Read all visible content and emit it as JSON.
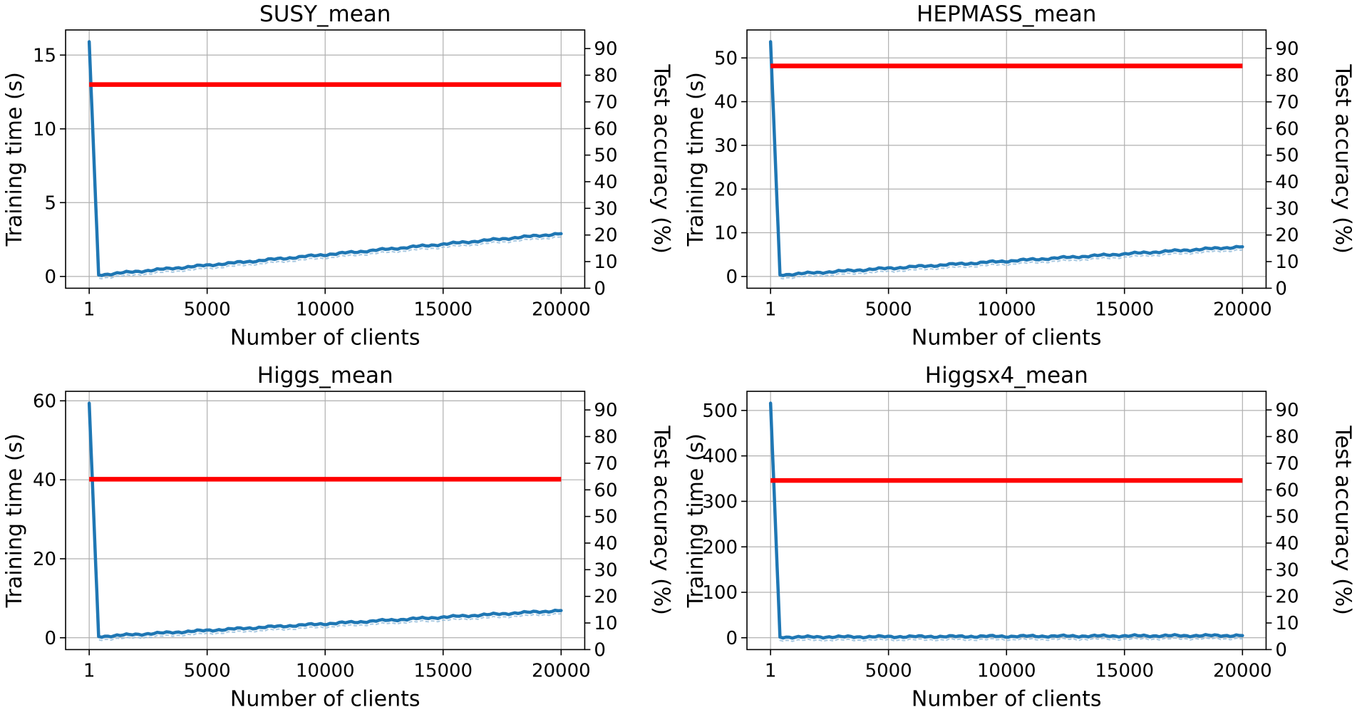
{
  "figure": {
    "background": "#ffffff",
    "layout": {
      "rows": 2,
      "cols": 2
    }
  },
  "colors": {
    "training_time": "#1f77b4",
    "training_time_echo": "#8db8d8",
    "accuracy": "#ff0000",
    "grid": "#b0b0b0",
    "spine": "#000000",
    "tick_label": "#000000",
    "title": "#000000"
  },
  "chart_data": [
    {
      "type": "line",
      "title": "SUSY_mean",
      "xlabel": "Number of clients",
      "x_axis": {
        "ticks": [
          1,
          5000,
          10000,
          15000,
          20000
        ],
        "xlim": [
          -999,
          21000
        ]
      },
      "left_axis": {
        "label": "Training time (s)",
        "color": "#1f77b4",
        "ticks": [
          0,
          5,
          10,
          15
        ],
        "ylim": [
          -0.8,
          16.7
        ]
      },
      "right_axis": {
        "label": "Test accuracy (%)",
        "color": "#ff0000",
        "ticks": [
          0,
          10,
          20,
          30,
          40,
          50,
          60,
          70,
          80,
          90
        ],
        "ylim": [
          0,
          97
        ]
      },
      "grid": true,
      "series": [
        {
          "name": "training_time_s",
          "axis": "left",
          "color": "#1f77b4",
          "points": [
            [
              1,
              15.9
            ],
            [
              400,
              0.1
            ],
            [
              20000,
              2.9
            ]
          ]
        },
        {
          "name": "test_accuracy_pct",
          "axis": "right",
          "color": "#ff0000",
          "points": [
            [
              1,
              76.5
            ],
            [
              20000,
              76.5
            ]
          ]
        }
      ]
    },
    {
      "type": "line",
      "title": "HEPMASS_mean",
      "xlabel": "Number of clients",
      "x_axis": {
        "ticks": [
          1,
          5000,
          10000,
          15000,
          20000
        ],
        "xlim": [
          -999,
          21000
        ]
      },
      "left_axis": {
        "label": "Training time (s)",
        "color": "#1f77b4",
        "ticks": [
          0,
          10,
          20,
          30,
          40,
          50
        ],
        "ylim": [
          -2.7,
          56.4
        ]
      },
      "right_axis": {
        "label": "Test accuracy (%)",
        "color": "#ff0000",
        "ticks": [
          0,
          10,
          20,
          30,
          40,
          50,
          60,
          70,
          80,
          90
        ],
        "ylim": [
          0,
          97
        ]
      },
      "grid": true,
      "series": [
        {
          "name": "training_time_s",
          "axis": "left",
          "color": "#1f77b4",
          "points": [
            [
              1,
              53.7
            ],
            [
              400,
              0.35
            ],
            [
              20000,
              6.8
            ]
          ]
        },
        {
          "name": "test_accuracy_pct",
          "axis": "right",
          "color": "#ff0000",
          "points": [
            [
              1,
              83.5
            ],
            [
              20000,
              83.5
            ]
          ]
        }
      ]
    },
    {
      "type": "line",
      "title": "Higgs_mean",
      "xlabel": "Number of clients",
      "x_axis": {
        "ticks": [
          1,
          5000,
          10000,
          15000,
          20000
        ],
        "xlim": [
          -999,
          21000
        ]
      },
      "left_axis": {
        "label": "Training time (s)",
        "color": "#1f77b4",
        "ticks": [
          0,
          20,
          40,
          60
        ],
        "ylim": [
          -3.0,
          62.4
        ]
      },
      "right_axis": {
        "label": "Test accuracy (%)",
        "color": "#ff0000",
        "ticks": [
          0,
          10,
          20,
          30,
          40,
          50,
          60,
          70,
          80,
          90
        ],
        "ylim": [
          0,
          97
        ]
      },
      "grid": true,
      "series": [
        {
          "name": "training_time_s",
          "axis": "left",
          "color": "#1f77b4",
          "points": [
            [
              1,
              59.4
            ],
            [
              400,
              0.3
            ],
            [
              20000,
              6.9
            ]
          ]
        },
        {
          "name": "test_accuracy_pct",
          "axis": "right",
          "color": "#ff0000",
          "points": [
            [
              1,
              64.0
            ],
            [
              20000,
              64.0
            ]
          ]
        }
      ]
    },
    {
      "type": "line",
      "title": "Higgsx4_mean",
      "xlabel": "Number of clients",
      "x_axis": {
        "ticks": [
          1,
          5000,
          10000,
          15000,
          20000
        ],
        "xlim": [
          -999,
          21000
        ]
      },
      "left_axis": {
        "label": "Training time (s)",
        "color": "#1f77b4",
        "ticks": [
          0,
          100,
          200,
          300,
          400,
          500
        ],
        "ylim": [
          -26,
          542
        ]
      },
      "right_axis": {
        "label": "Test accuracy (%)",
        "color": "#ff0000",
        "ticks": [
          0,
          10,
          20,
          30,
          40,
          50,
          60,
          70,
          80,
          90
        ],
        "ylim": [
          0,
          97
        ]
      },
      "grid": true,
      "series": [
        {
          "name": "training_time_s",
          "axis": "left",
          "color": "#1f77b4",
          "points": [
            [
              1,
              516
            ],
            [
              400,
              1.5
            ],
            [
              20000,
              5
            ]
          ]
        },
        {
          "name": "test_accuracy_pct",
          "axis": "right",
          "color": "#ff0000",
          "points": [
            [
              1,
              63.5
            ],
            [
              20000,
              63.5
            ]
          ]
        }
      ]
    }
  ]
}
